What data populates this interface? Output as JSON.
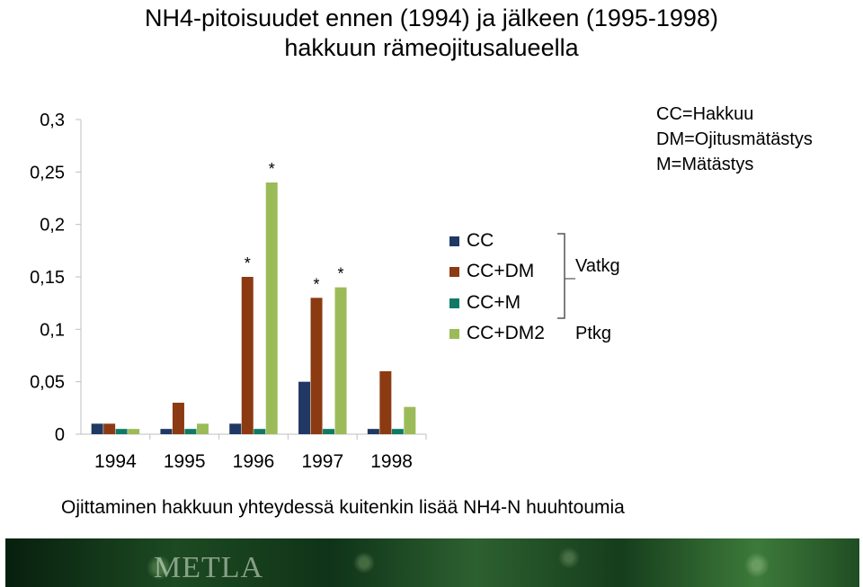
{
  "title_line1": "NH4-pitoisuudet ennen (1994) ja jälkeen (1995-1998)",
  "title_line2": "hakkuun rämeojitusalueella",
  "abbreviations": [
    "CC=Hakkuu",
    "DM=Ojitusmätästys",
    "M=Mätästys"
  ],
  "group_labels": {
    "vatkg": "Vatkg",
    "ptkg": "Ptkg"
  },
  "caption": "Ojittaminen hakkuun yhteydessä kuitenkin lisää NH4-N huuhtoumia",
  "footer_logo": "METLA",
  "chart_data": {
    "type": "bar",
    "title": "",
    "xlabel": "",
    "ylabel": "",
    "categories": [
      "1994",
      "1995",
      "1996",
      "1997",
      "1998"
    ],
    "ylim": [
      0,
      0.3
    ],
    "yticks": [
      0,
      0.05,
      0.1,
      0.15,
      0.2,
      0.25,
      0.3
    ],
    "ytick_labels": [
      "0",
      "0,05",
      "0,1",
      "0,15",
      "0,2",
      "0,25",
      "0,3"
    ],
    "grid": false,
    "legend_position": "right",
    "series": [
      {
        "name": "CC",
        "color": "#1f3864",
        "values": [
          0.01,
          0.005,
          0.01,
          0.05,
          0.005
        ]
      },
      {
        "name": "CC+DM",
        "color": "#8b3a12",
        "values": [
          0.01,
          0.03,
          0.15,
          0.13,
          0.06
        ]
      },
      {
        "name": "CC+M",
        "color": "#0f7a64",
        "values": [
          0.005,
          0.005,
          0.005,
          0.005,
          0.005
        ]
      },
      {
        "name": "CC+DM2",
        "color": "#9bbb59",
        "values": [
          0.005,
          0.01,
          0.24,
          0.14,
          0.026
        ]
      }
    ],
    "annotations": [
      {
        "text": "*",
        "category": "1996",
        "series": "CC+DM"
      },
      {
        "text": "*",
        "category": "1996",
        "series": "CC+DM2"
      },
      {
        "text": "*",
        "category": "1997",
        "series": "CC+DM"
      },
      {
        "text": "*",
        "category": "1997",
        "series": "CC+DM2"
      }
    ]
  }
}
